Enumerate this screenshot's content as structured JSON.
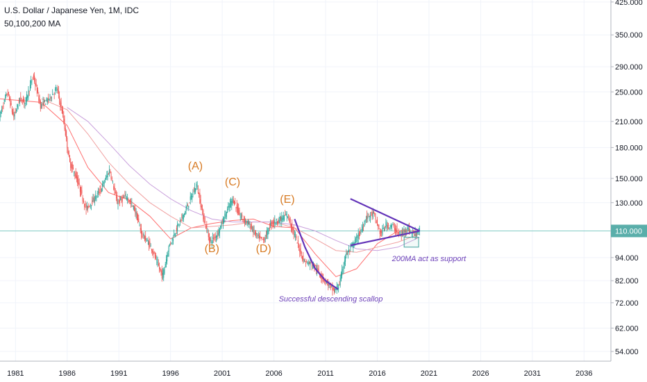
{
  "header": {
    "symbol": "U.S. Dollar / Japanese Yen, 1M, IDC",
    "indicator": "50,100,200 MA"
  },
  "colors": {
    "bull": "#26a69a",
    "bear": "#ef5350",
    "ma50": "#ff6e6e",
    "ma100": "#f0a0a0",
    "ma200": "#c9a0dc",
    "trendline": "#6232b8",
    "wave_label": "#d77a22",
    "annotation": "#6b3fb8",
    "current_line": "#80cbc4",
    "current_tag": "#5aaeaa"
  },
  "chart_data": {
    "type": "candlestick",
    "y_scale": "log",
    "ylim": [
      51,
      430
    ],
    "xlim": [
      1979.5,
      2038.6
    ],
    "price_ticks": [
      "425.000",
      "350.000",
      "290.000",
      "250.000",
      "210.000",
      "180.000",
      "150.000",
      "130.000",
      "110.000",
      "94.000",
      "82.000",
      "72.000",
      "62.000",
      "54.000"
    ],
    "price_tick_values": [
      425,
      350,
      290,
      250,
      210,
      180,
      150,
      130,
      110,
      94,
      82,
      72,
      62,
      54
    ],
    "time_ticks": [
      "1981",
      "1986",
      "1991",
      "1996",
      "2001",
      "2006",
      "2011",
      "2016",
      "2021",
      "2026",
      "2031",
      "2036"
    ],
    "time_tick_values": [
      1981,
      1986,
      1991,
      1996,
      2001,
      2006,
      2011,
      2016,
      2021,
      2026,
      2031,
      2036
    ],
    "current_price": {
      "label": "110.000",
      "value": 110
    },
    "price_path": [
      [
        1979.5,
        215
      ],
      [
        1980.3,
        250
      ],
      [
        1980.9,
        215
      ],
      [
        1981.5,
        240
      ],
      [
        1982.0,
        235
      ],
      [
        1982.8,
        275
      ],
      [
        1983.5,
        230
      ],
      [
        1984.3,
        240
      ],
      [
        1985.1,
        255
      ],
      [
        1985.7,
        215
      ],
      [
        1986.3,
        165
      ],
      [
        1987.0,
        150
      ],
      [
        1987.9,
        125
      ],
      [
        1988.6,
        132
      ],
      [
        1989.3,
        140
      ],
      [
        1990.2,
        158
      ],
      [
        1990.9,
        130
      ],
      [
        1991.8,
        135
      ],
      [
        1992.6,
        125
      ],
      [
        1993.3,
        108
      ],
      [
        1994.2,
        100
      ],
      [
        1995.3,
        84
      ],
      [
        1995.9,
        100
      ],
      [
        1996.7,
        112
      ],
      [
        1997.6,
        125
      ],
      [
        1998.6,
        145
      ],
      [
        1999.3,
        118
      ],
      [
        1999.9,
        103
      ],
      [
        2000.6,
        108
      ],
      [
        2001.5,
        123
      ],
      [
        2002.1,
        133
      ],
      [
        2002.8,
        120
      ],
      [
        2003.6,
        115
      ],
      [
        2004.5,
        106
      ],
      [
        2005.1,
        104
      ],
      [
        2005.8,
        115
      ],
      [
        2006.5,
        117
      ],
      [
        2007.4,
        121
      ],
      [
        2008.3,
        103
      ],
      [
        2009.0,
        92
      ],
      [
        2009.9,
        90
      ],
      [
        2010.7,
        84
      ],
      [
        2011.4,
        80
      ],
      [
        2011.9,
        77
      ],
      [
        2012.4,
        80
      ],
      [
        2013.0,
        95
      ],
      [
        2013.8,
        102
      ],
      [
        2014.5,
        110
      ],
      [
        2015.0,
        119
      ],
      [
        2015.7,
        122
      ],
      [
        2016.4,
        108
      ],
      [
        2016.9,
        114
      ],
      [
        2017.6,
        113
      ],
      [
        2018.3,
        107
      ],
      [
        2018.9,
        112
      ],
      [
        2019.6,
        108
      ],
      [
        2020.1,
        110
      ]
    ],
    "moving_averages": [
      {
        "name": "MA50",
        "points": [
          [
            1979.5,
            240
          ],
          [
            1983.5,
            235
          ],
          [
            1986.0,
            205
          ],
          [
            1988.0,
            160
          ],
          [
            1990.0,
            138
          ],
          [
            1992.0,
            132
          ],
          [
            1994.0,
            120
          ],
          [
            1996.0,
            105
          ],
          [
            1998.0,
            112
          ],
          [
            2000.0,
            115
          ],
          [
            2002.0,
            117
          ],
          [
            2004.0,
            118
          ],
          [
            2006.0,
            113
          ],
          [
            2008.0,
            112
          ],
          [
            2010.0,
            96
          ],
          [
            2012.0,
            84
          ],
          [
            2014.0,
            88
          ],
          [
            2016.0,
            102
          ],
          [
            2018.0,
            110
          ],
          [
            2020.1,
            110
          ]
        ]
      },
      {
        "name": "MA100",
        "points": [
          [
            1983.5,
            240
          ],
          [
            1986.0,
            225
          ],
          [
            1988.0,
            195
          ],
          [
            1990.0,
            165
          ],
          [
            1992.0,
            145
          ],
          [
            1994.0,
            130
          ],
          [
            1996.0,
            120
          ],
          [
            1998.0,
            112
          ],
          [
            2000.0,
            113
          ],
          [
            2002.0,
            114
          ],
          [
            2004.0,
            116
          ],
          [
            2006.0,
            116
          ],
          [
            2008.0,
            112
          ],
          [
            2010.0,
            105
          ],
          [
            2012.0,
            98
          ],
          [
            2014.0,
            97
          ],
          [
            2016.0,
            100
          ],
          [
            2018.0,
            103
          ],
          [
            2020.1,
            108
          ]
        ]
      },
      {
        "name": "MA200",
        "points": [
          [
            1986.0,
            228
          ],
          [
            1988.0,
            210
          ],
          [
            1990.0,
            185
          ],
          [
            1992.0,
            162
          ],
          [
            1994.0,
            145
          ],
          [
            1996.0,
            133
          ],
          [
            1998.0,
            124
          ],
          [
            2000.0,
            118
          ],
          [
            2002.0,
            116
          ],
          [
            2004.0,
            116
          ],
          [
            2006.0,
            116
          ],
          [
            2008.0,
            114
          ],
          [
            2010.0,
            110
          ],
          [
            2012.0,
            104
          ],
          [
            2014.0,
            99
          ],
          [
            2016.0,
            98
          ],
          [
            2018.0,
            100
          ],
          [
            2020.1,
            106
          ]
        ]
      }
    ],
    "wave_labels": [
      {
        "text": "(A)",
        "x": 1998.4,
        "y": 158
      },
      {
        "text": "(B)",
        "x": 2000.0,
        "y": 97
      },
      {
        "text": "(C)",
        "x": 2002.0,
        "y": 144
      },
      {
        "text": "(D)",
        "x": 2005.0,
        "y": 97
      },
      {
        "text": "(E)",
        "x": 2007.3,
        "y": 130
      }
    ],
    "annotations": [
      {
        "text": "Successful descending scallop",
        "x": 2011.5,
        "y": 72.5
      },
      {
        "text": "200MA act as support",
        "x": 2021.0,
        "y": 92
      }
    ],
    "triangle": {
      "upper": [
        [
          2013.4,
          133
        ],
        [
          2020.1,
          110
        ]
      ],
      "lower": [
        [
          2013.4,
          101
        ],
        [
          2020.1,
          110
        ]
      ]
    },
    "scallop": [
      [
        2008.0,
        118
      ],
      [
        2009.0,
        100
      ],
      [
        2010.0,
        88
      ],
      [
        2011.0,
        82
      ],
      [
        2012.2,
        78
      ]
    ],
    "support_box": {
      "x0": 2018.6,
      "x1": 2020.0,
      "y0": 100,
      "y1": 106
    }
  }
}
